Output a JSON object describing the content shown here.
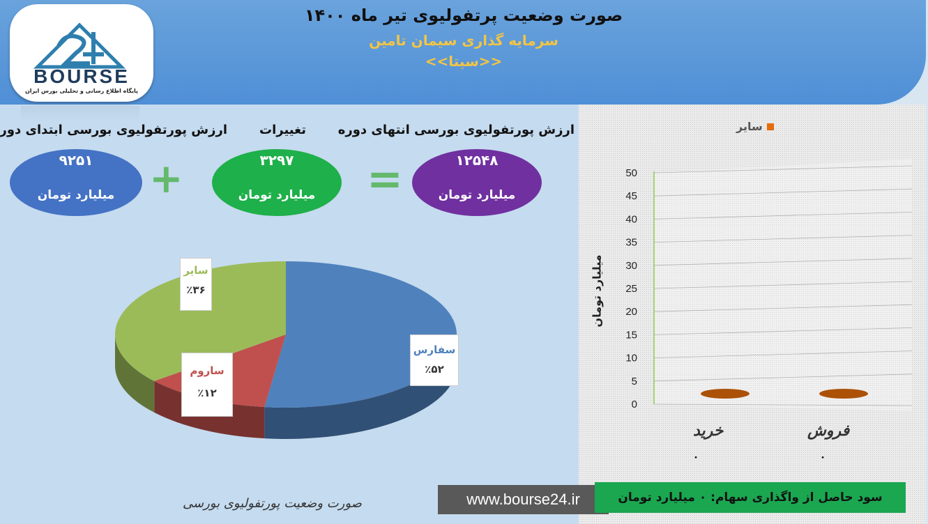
{
  "header": {
    "title": "صورت وضعیت پرتفولیوی تیر ماه ۱۴۰۰",
    "subtitle": "سرمایه گذاری سیمان تامین",
    "ticker": "<<سیتا>>"
  },
  "logo": {
    "text": "BOURSE",
    "tagline": "پایگاه اطلاع رسانی و تحلیلی بورس ایران"
  },
  "summary": {
    "start": {
      "label": "ارزش پورتفولیوی بورسی ابتدای دوره",
      "value": "۹۲۵۱",
      "unit": "میلیارد تومان",
      "color": "#4472c4"
    },
    "change": {
      "label": "تغییرات",
      "value": "۳۲۹۷",
      "unit": "میلیارد تومان",
      "color": "#1eb04a"
    },
    "end": {
      "label": "ارزش پورتفولیوی بورسی انتهای دوره",
      "value": "۱۲۵۴۸",
      "unit": "میلیارد تومان",
      "color": "#7030a0"
    },
    "plus": "+",
    "equals": "="
  },
  "chart_data": [
    {
      "type": "pie",
      "categories": [
        "سفارس",
        "ساروم",
        "سایر"
      ],
      "values": [
        52,
        12,
        36
      ],
      "labels": [
        "٪۵۲",
        "٪۱۲",
        "٪۳۶"
      ],
      "colors": [
        "#4f81bd",
        "#c0504d",
        "#9bbb59"
      ]
    },
    {
      "type": "bar",
      "categories": [
        "خرید",
        "فروش"
      ],
      "series": [
        {
          "name": "سایر",
          "values": [
            0,
            0
          ],
          "color": "#e46c0a"
        }
      ],
      "value_labels": [
        "۰",
        "۰"
      ],
      "ylabel": "میلیارد تومان",
      "ylim": [
        0,
        50
      ],
      "yticks": [
        "0",
        "5",
        "10",
        "15",
        "20",
        "25",
        "30",
        "35",
        "40",
        "45",
        "50"
      ],
      "grid": true,
      "legend": "top"
    }
  ],
  "footer": {
    "title": "صورت وضعیت پورتفولیوی بورسی",
    "url": "www.bourse24.ir",
    "profit": "سود حاصل از واگذاری سهام: ۰ میلیارد تومان"
  }
}
